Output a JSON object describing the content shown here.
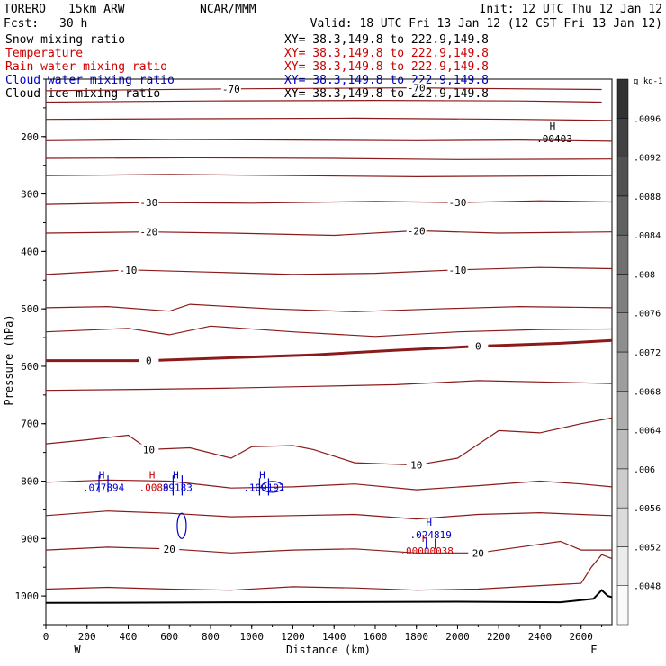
{
  "header": {
    "model": "TORERO",
    "grid": "15km ARW",
    "org": "NCAR/MMM",
    "init": "Init: 12 UTC Thu 12 Jan 12",
    "fcst_label": "Fcst:",
    "fcst_value": "30 h",
    "valid": "Valid: 18 UTC Fri 13 Jan 12 (12 CST Fri 13 Jan 12)"
  },
  "fields": [
    {
      "name": "Snow mixing ratio",
      "xy": "XY=  38.3,149.8 to 222.9,149.8",
      "color": "#000000"
    },
    {
      "name": "Temperature",
      "xy": "XY=  38.3,149.8 to 222.9,149.8",
      "color": "#cc0000"
    },
    {
      "name": "Rain water mixing ratio",
      "xy": "XY=  38.3,149.8 to 222.9,149.8",
      "color": "#cc0000"
    },
    {
      "name": "Cloud water mixing ratio",
      "xy": "XY=  38.3,149.8 to 222.9,149.8",
      "color": "#0000cc"
    },
    {
      "name": "Cloud ice mixing ratio",
      "xy": "XY=  38.3,149.8 to 222.9,149.8",
      "color": "#000000"
    }
  ],
  "chart_data": {
    "type": "contour",
    "xlabel": "Distance (km)",
    "ylabel": "Pressure (hPa)",
    "xlim": [
      0,
      2750
    ],
    "ylim": [
      1050,
      100
    ],
    "x_ticks": [
      0,
      200,
      400,
      600,
      800,
      1000,
      1200,
      1400,
      1600,
      1800,
      2000,
      2200,
      2400,
      2600
    ],
    "y_ticks": [
      200,
      300,
      400,
      500,
      600,
      700,
      800,
      900,
      1000
    ],
    "x_end_labels": {
      "left": "W",
      "right": "E"
    },
    "isotherm_color": "#8b1a1a",
    "temperature_contours": [
      {
        "label": "-70",
        "points": [
          [
            0,
            120
          ],
          [
            900,
            117
          ],
          [
            1800,
            115
          ],
          [
            2000,
            116
          ],
          [
            2700,
            118
          ]
        ]
      },
      {
        "label": "",
        "points": [
          [
            0,
            140
          ],
          [
            800,
            138
          ],
          [
            1600,
            137
          ],
          [
            2300,
            138
          ],
          [
            2700,
            140
          ]
        ]
      },
      {
        "label": "",
        "points": [
          [
            0,
            170
          ],
          [
            700,
            169
          ],
          [
            1500,
            168
          ],
          [
            2300,
            170
          ],
          [
            2750,
            172
          ]
        ]
      },
      {
        "label": "",
        "points": [
          [
            0,
            207
          ],
          [
            600,
            205
          ],
          [
            1200,
            206
          ],
          [
            1800,
            207
          ],
          [
            2300,
            206
          ],
          [
            2750,
            208
          ]
        ]
      },
      {
        "label": "",
        "points": [
          [
            0,
            238
          ],
          [
            700,
            237
          ],
          [
            1400,
            238
          ],
          [
            2000,
            240
          ],
          [
            2750,
            239
          ]
        ]
      },
      {
        "label": "",
        "points": [
          [
            0,
            268
          ],
          [
            600,
            266
          ],
          [
            1200,
            268
          ],
          [
            1800,
            270
          ],
          [
            2750,
            268
          ]
        ]
      },
      {
        "label": "-30",
        "points": [
          [
            0,
            318
          ],
          [
            500,
            315
          ],
          [
            1000,
            316
          ],
          [
            1600,
            313
          ],
          [
            2000,
            315
          ],
          [
            2400,
            312
          ],
          [
            2750,
            314
          ]
        ]
      },
      {
        "label": "-20",
        "points": [
          [
            0,
            368
          ],
          [
            500,
            366
          ],
          [
            900,
            368
          ],
          [
            1400,
            372
          ],
          [
            1800,
            364
          ],
          [
            2200,
            368
          ],
          [
            2750,
            366
          ]
        ]
      },
      {
        "label": "-10",
        "points": [
          [
            0,
            440
          ],
          [
            400,
            432
          ],
          [
            800,
            436
          ],
          [
            1200,
            440
          ],
          [
            1600,
            438
          ],
          [
            2000,
            432
          ],
          [
            2400,
            428
          ],
          [
            2750,
            430
          ]
        ]
      },
      {
        "label": "",
        "points": [
          [
            0,
            498
          ],
          [
            300,
            496
          ],
          [
            600,
            504
          ],
          [
            700,
            492
          ],
          [
            1100,
            500
          ],
          [
            1500,
            505
          ],
          [
            1900,
            500
          ],
          [
            2300,
            496
          ],
          [
            2750,
            498
          ]
        ]
      },
      {
        "label": "",
        "points": [
          [
            0,
            540
          ],
          [
            400,
            534
          ],
          [
            600,
            545
          ],
          [
            800,
            530
          ],
          [
            1200,
            540
          ],
          [
            1600,
            548
          ],
          [
            2000,
            540
          ],
          [
            2400,
            536
          ],
          [
            2750,
            535
          ]
        ]
      },
      {
        "label": "0",
        "bold": true,
        "points": [
          [
            0,
            590
          ],
          [
            500,
            590
          ],
          [
            900,
            585
          ],
          [
            1300,
            580
          ],
          [
            1700,
            572
          ],
          [
            2100,
            565
          ],
          [
            2500,
            560
          ],
          [
            2750,
            555
          ]
        ]
      },
      {
        "label": "",
        "points": [
          [
            0,
            642
          ],
          [
            500,
            640
          ],
          [
            900,
            638
          ],
          [
            1300,
            635
          ],
          [
            1700,
            632
          ],
          [
            2100,
            625
          ],
          [
            2500,
            628
          ],
          [
            2750,
            630
          ]
        ]
      },
      {
        "label": "10",
        "points": [
          [
            0,
            735
          ],
          [
            200,
            728
          ],
          [
            400,
            720
          ],
          [
            500,
            745
          ],
          [
            700,
            742
          ],
          [
            900,
            760
          ],
          [
            1000,
            740
          ],
          [
            1200,
            738
          ],
          [
            1300,
            745
          ],
          [
            1500,
            768
          ],
          [
            1800,
            772
          ],
          [
            2000,
            760
          ],
          [
            2200,
            712
          ],
          [
            2400,
            716
          ],
          [
            2600,
            700
          ],
          [
            2750,
            690
          ]
        ]
      },
      {
        "label": "",
        "points": [
          [
            0,
            802
          ],
          [
            300,
            798
          ],
          [
            600,
            800
          ],
          [
            900,
            812
          ],
          [
            1200,
            810
          ],
          [
            1500,
            805
          ],
          [
            1800,
            815
          ],
          [
            2100,
            808
          ],
          [
            2400,
            800
          ],
          [
            2600,
            805
          ],
          [
            2750,
            810
          ]
        ]
      },
      {
        "label": "",
        "points": [
          [
            0,
            860
          ],
          [
            300,
            852
          ],
          [
            600,
            856
          ],
          [
            900,
            862
          ],
          [
            1200,
            860
          ],
          [
            1500,
            858
          ],
          [
            1800,
            866
          ],
          [
            2100,
            858
          ],
          [
            2400,
            855
          ],
          [
            2600,
            858
          ],
          [
            2750,
            860
          ]
        ]
      },
      {
        "label": "20",
        "points": [
          [
            0,
            920
          ],
          [
            300,
            915
          ],
          [
            600,
            918
          ],
          [
            900,
            925
          ],
          [
            1200,
            920
          ],
          [
            1500,
            918
          ],
          [
            1800,
            925
          ],
          [
            2100,
            925
          ],
          [
            2400,
            910
          ],
          [
            2500,
            905
          ],
          [
            2600,
            920
          ],
          [
            2750,
            920
          ]
        ]
      },
      {
        "label": "",
        "points": [
          [
            0,
            988
          ],
          [
            300,
            985
          ],
          [
            600,
            988
          ],
          [
            900,
            990
          ],
          [
            1200,
            984
          ],
          [
            1500,
            986
          ],
          [
            1800,
            990
          ],
          [
            2100,
            988
          ],
          [
            2400,
            982
          ],
          [
            2600,
            978
          ],
          [
            2650,
            950
          ],
          [
            2700,
            928
          ],
          [
            2750,
            935
          ]
        ]
      }
    ],
    "terrain": [
      [
        0,
        1012
      ],
      [
        1000,
        1011
      ],
      [
        2000,
        1010
      ],
      [
        2500,
        1011
      ],
      [
        2660,
        1005
      ],
      [
        2700,
        990
      ],
      [
        2730,
        1000
      ],
      [
        2750,
        1002
      ]
    ],
    "extrema": [
      {
        "type": "H",
        "value": ".077894",
        "field": "cloud water",
        "x": 280,
        "p": 808
      },
      {
        "type": "H",
        "value": ".0089",
        "field": "rain water",
        "x": 525,
        "p": 808
      },
      {
        "type": "H",
        "value": "89183",
        "field": "cloud water",
        "x": 640,
        "p": 808
      },
      {
        "type": "H",
        "value": ".109191",
        "field": "cloud water",
        "x": 1060,
        "p": 808
      },
      {
        "type": "H",
        "value": ".024819",
        "field": "cloud water",
        "x": 1870,
        "p": 890
      },
      {
        "type": "H",
        "value": ".00000038",
        "field": "rain water",
        "x": 1850,
        "p": 918
      },
      {
        "type": "H",
        "value": ".00403",
        "field": "snow",
        "x": 2470,
        "p": 200
      }
    ],
    "colorbar": {
      "unit": "g kg-1",
      "ticks": [
        ".0096",
        ".0092",
        ".0088",
        ".0084",
        ".008",
        ".0076",
        ".0072",
        ".0068",
        ".0064",
        ".006",
        ".0056",
        ".0052",
        ".0048"
      ],
      "tick_values": [
        0.0096,
        0.0092,
        0.0088,
        0.0084,
        0.008,
        0.0076,
        0.0072,
        0.0068,
        0.0064,
        0.006,
        0.0056,
        0.0052,
        0.0048
      ],
      "range": [
        0.0044,
        0.01
      ]
    }
  }
}
